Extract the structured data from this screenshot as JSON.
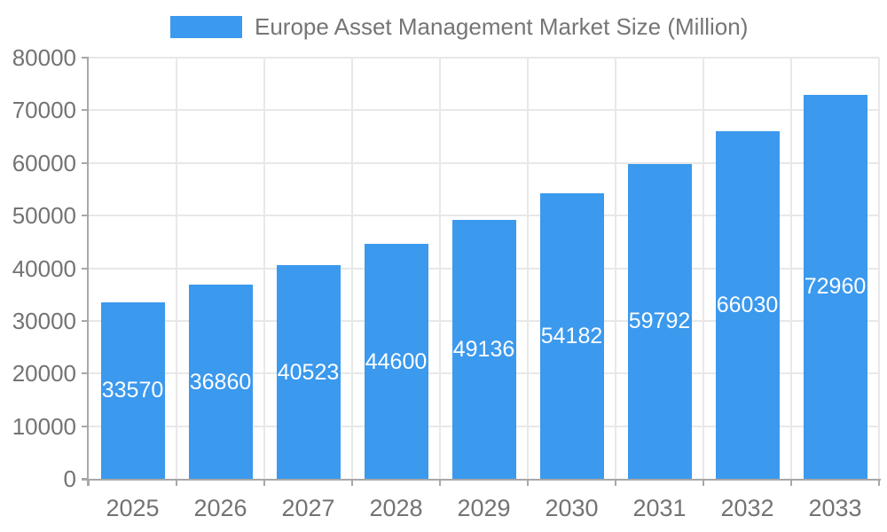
{
  "legend": {
    "label": "Europe Asset Management Market Size (Million)"
  },
  "colors": {
    "bar": "#3b99ee",
    "grid": "#e8e8e8",
    "axis_line": "#a8a8a8",
    "axis_text": "#737373",
    "legend_text": "#757575",
    "bar_label_text": "#ffffff",
    "background": "#ffffff"
  },
  "chart_data": {
    "type": "bar",
    "title": "Europe Asset Management Market Size (Million)",
    "categories": [
      "2025",
      "2026",
      "2027",
      "2028",
      "2029",
      "2030",
      "2031",
      "2032",
      "2033"
    ],
    "values": [
      33570,
      36860,
      40523,
      44600,
      49136,
      54182,
      59792,
      66030,
      72960
    ],
    "xlabel": "",
    "ylabel": "",
    "ylim": [
      0,
      80000
    ],
    "ytick_step": 10000,
    "yticks": [
      0,
      10000,
      20000,
      30000,
      40000,
      50000,
      60000,
      70000,
      80000
    ],
    "grid": true,
    "legend_position": "top",
    "data_labels_position": "inside-center",
    "bar_color": "#3b99ee"
  }
}
